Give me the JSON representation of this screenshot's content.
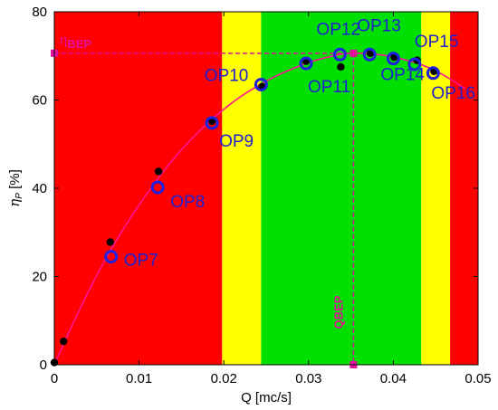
{
  "chart_data": {
    "type": "scatter",
    "title": "",
    "xlabel": "Q [mc/s]",
    "ylabel_main": "η",
    "ylabel_sub": "P",
    "ylabel_unit": "[%]",
    "xlim": [
      0,
      0.05
    ],
    "ylim": [
      0,
      80
    ],
    "xticks": [
      0,
      0.01,
      0.02,
      0.03,
      0.04,
      0.05
    ],
    "xtick_labels": [
      "0",
      "0.01",
      "0.02",
      "0.03",
      "0.04",
      "0.05"
    ],
    "yticks": [
      0,
      20,
      40,
      60,
      80
    ],
    "ytick_labels": [
      "0",
      "20",
      "40",
      "60",
      "80"
    ],
    "grid": false,
    "colors": {
      "red_zone": "#ff0000",
      "yellow_zone": "#ffff00",
      "green_zone": "#00e000",
      "curve": "#ff1493",
      "annotation": "#e0109a",
      "op_marker": "#2020e0",
      "measured_point": "#000000"
    },
    "zones": [
      {
        "color": "red",
        "x0": 0.0,
        "x1": 0.0198
      },
      {
        "color": "yellow",
        "x0": 0.0198,
        "x1": 0.0244
      },
      {
        "color": "green",
        "x0": 0.0244,
        "x1": 0.0433
      },
      {
        "color": "yellow",
        "x0": 0.0433,
        "x1": 0.0467
      },
      {
        "color": "red",
        "x0": 0.0467,
        "x1": 0.05
      }
    ],
    "measured_points": {
      "x": [
        0.0,
        0.0011,
        0.0066,
        0.0123,
        0.0186,
        0.0245,
        0.0297,
        0.0338,
        0.0373,
        0.0401,
        0.0428,
        0.0448
      ],
      "y": [
        0.5,
        5.3,
        27.8,
        43.8,
        55.2,
        63.0,
        68.8,
        67.5,
        70.6,
        69.7,
        69.0,
        66.5
      ]
    },
    "fit_curve": {
      "x": [
        0.0,
        0.002,
        0.004,
        0.006,
        0.008,
        0.01,
        0.012,
        0.014,
        0.016,
        0.018,
        0.02,
        0.022,
        0.024,
        0.026,
        0.028,
        0.03,
        0.032,
        0.034,
        0.0353,
        0.037,
        0.039,
        0.041,
        0.043,
        0.045,
        0.047,
        0.0485
      ],
      "y": [
        0.0,
        8.5,
        16.5,
        23.8,
        30.3,
        36.2,
        41.6,
        46.5,
        50.8,
        54.6,
        57.9,
        60.8,
        63.2,
        65.3,
        67.0,
        68.5,
        69.6,
        70.4,
        70.6,
        70.5,
        70.1,
        69.3,
        68.2,
        66.6,
        64.4,
        62.5
      ]
    },
    "operating_points": [
      {
        "label": "OP7",
        "x": 0.0067,
        "y": 24.5
      },
      {
        "label": "OP8",
        "x": 0.0122,
        "y": 40.2
      },
      {
        "label": "OP9",
        "x": 0.0186,
        "y": 54.8
      },
      {
        "label": "OP10",
        "x": 0.0244,
        "y": 63.5
      },
      {
        "label": "OP11",
        "x": 0.0297,
        "y": 68.3
      },
      {
        "label": "OP12",
        "x": 0.0337,
        "y": 70.3
      },
      {
        "label": "OP13",
        "x": 0.0372,
        "y": 70.3
      },
      {
        "label": "OP14",
        "x": 0.04,
        "y": 69.4
      },
      {
        "label": "OP15",
        "x": 0.0425,
        "y": 68.1
      },
      {
        "label": "OP16",
        "x": 0.0447,
        "y": 66.1
      }
    ],
    "bep": {
      "x": 0.0353,
      "y": 70.6,
      "eta_label_main": "η",
      "eta_label_sub": "BEP",
      "q_label": "QBEP"
    }
  }
}
